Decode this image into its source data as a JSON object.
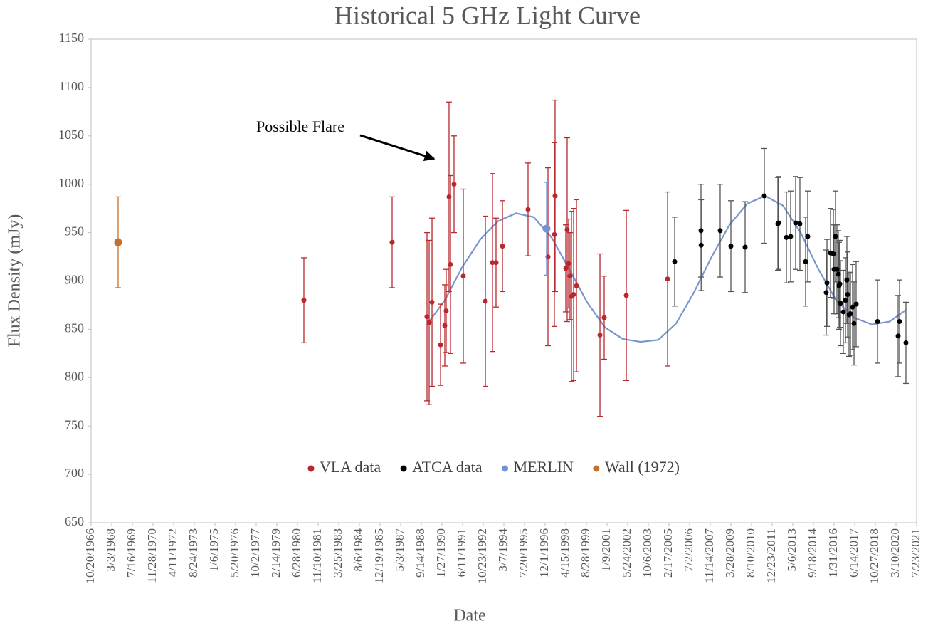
{
  "chart_data": {
    "type": "scatter",
    "title": "Historical 5 GHz Light Curve",
    "xlabel": "Date",
    "ylabel": "Flux Density (mJy)",
    "annotation": "Possible Flare",
    "legend": "center",
    "xlim": [
      24400,
      44400
    ],
    "ylim": [
      650,
      1150
    ],
    "yticks": [
      650,
      700,
      750,
      800,
      850,
      900,
      950,
      1000,
      1050,
      1100,
      1150
    ],
    "xticks": [
      {
        "value": 24400,
        "label": "10/20/1966"
      },
      {
        "value": 24900,
        "label": "3/3/1968"
      },
      {
        "value": 25400,
        "label": "7/16/1969"
      },
      {
        "value": 25900,
        "label": "11/28/1970"
      },
      {
        "value": 26400,
        "label": "4/11/1972"
      },
      {
        "value": 26900,
        "label": "8/24/1973"
      },
      {
        "value": 27400,
        "label": "1/6/1975"
      },
      {
        "value": 27900,
        "label": "5/20/1976"
      },
      {
        "value": 28400,
        "label": "10/2/1977"
      },
      {
        "value": 28900,
        "label": "2/14/1979"
      },
      {
        "value": 29400,
        "label": "6/28/1980"
      },
      {
        "value": 29900,
        "label": "11/10/1981"
      },
      {
        "value": 30400,
        "label": "3/25/1983"
      },
      {
        "value": 30900,
        "label": "8/6/1984"
      },
      {
        "value": 31400,
        "label": "12/19/1985"
      },
      {
        "value": 31900,
        "label": "5/3/1987"
      },
      {
        "value": 32400,
        "label": "9/14/1988"
      },
      {
        "value": 32900,
        "label": "1/27/1990"
      },
      {
        "value": 33400,
        "label": "6/11/1991"
      },
      {
        "value": 33900,
        "label": "10/23/1992"
      },
      {
        "value": 34400,
        "label": "3/7/1994"
      },
      {
        "value": 34900,
        "label": "7/20/1995"
      },
      {
        "value": 35400,
        "label": "12/1/1996"
      },
      {
        "value": 35900,
        "label": "4/15/1998"
      },
      {
        "value": 36400,
        "label": "8/28/1999"
      },
      {
        "value": 36900,
        "label": "1/9/2001"
      },
      {
        "value": 37400,
        "label": "5/24/2002"
      },
      {
        "value": 37900,
        "label": "10/6/2003"
      },
      {
        "value": 38400,
        "label": "2/17/2005"
      },
      {
        "value": 38900,
        "label": "7/2/2006"
      },
      {
        "value": 39400,
        "label": "11/14/2007"
      },
      {
        "value": 39900,
        "label": "3/28/2009"
      },
      {
        "value": 40400,
        "label": "8/10/2010"
      },
      {
        "value": 40900,
        "label": "12/23/2011"
      },
      {
        "value": 41400,
        "label": "5/6/2013"
      },
      {
        "value": 41900,
        "label": "9/18/2014"
      },
      {
        "value": 42400,
        "label": "1/31/2016"
      },
      {
        "value": 42900,
        "label": "6/14/2017"
      },
      {
        "value": 43400,
        "label": "10/27/2018"
      },
      {
        "value": 43900,
        "label": "3/10/2020"
      },
      {
        "value": 44400,
        "label": "7/23/2021"
      }
    ],
    "series": [
      {
        "name": "VLA data",
        "color": "#b8282e",
        "error_color": "#b8282e",
        "x": [
          29555,
          31693,
          32538,
          32590,
          32659,
          32866,
          32969,
          33003,
          33072,
          33107,
          33193,
          33417,
          33952,
          34124,
          34210,
          34366,
          34986,
          35469,
          35624,
          35641,
          35900,
          35934,
          35969,
          36003,
          36038,
          36090,
          36159,
          36728,
          36831,
          37366,
          38366
        ],
        "values": [
          880,
          940,
          863,
          857,
          878,
          834,
          854,
          869,
          987,
          917,
          1000,
          905,
          879,
          919,
          919,
          936,
          974,
          925,
          948,
          988,
          913,
          953,
          918,
          905,
          884,
          886,
          895,
          844,
          862,
          885,
          902
        ],
        "errors": [
          44,
          47,
          87,
          85,
          87,
          42,
          42,
          43,
          98,
          92,
          50,
          90,
          88,
          92,
          46,
          47,
          48,
          92,
          95,
          99,
          45,
          95,
          46,
          45,
          88,
          89,
          89,
          84,
          43,
          88,
          90
        ]
      },
      {
        "name": "ATCA data",
        "color": "#000000",
        "error_color": "#555555",
        "x": [
          38538,
          39176,
          39180,
          39641,
          39900,
          40245,
          40710,
          41038,
          41055,
          41245,
          41348,
          41469,
          41572,
          41710,
          41762,
          42210,
          42228,
          42314,
          42383,
          42400,
          42434,
          42469,
          42503,
          42521,
          42538,
          42555,
          42624,
          42676,
          42710,
          42728,
          42762,
          42797,
          42848,
          42883,
          42934,
          43452,
          43952,
          43986,
          44141
        ],
        "values": [
          920,
          952,
          937,
          952,
          936,
          935,
          988,
          959,
          960,
          945,
          946,
          960,
          959,
          920,
          946,
          888,
          898,
          929,
          928,
          912,
          946,
          912,
          907,
          895,
          897,
          877,
          868,
          880,
          901,
          886,
          865,
          866,
          873,
          856,
          876,
          858,
          843,
          858,
          836
        ],
        "errors": [
          46,
          48,
          47,
          48,
          47,
          47,
          49,
          48,
          48,
          47,
          47,
          48,
          48,
          46,
          47,
          44,
          45,
          46,
          46,
          46,
          47,
          46,
          45,
          45,
          45,
          44,
          43,
          44,
          45,
          44,
          43,
          43,
          44,
          43,
          44,
          43,
          42,
          43,
          42
        ]
      },
      {
        "name": "MERLIN",
        "color": "#7592d0",
        "error_color": "#7592d0",
        "x": [
          35434
        ],
        "values": [
          954
        ],
        "errors": [
          48
        ]
      },
      {
        "name": "Wall (1972)",
        "color": "#c5702c",
        "error_color": "#c5702c",
        "x": [
          25055
        ],
        "values": [
          940
        ],
        "errors": [
          47
        ]
      }
    ],
    "fit": {
      "color": "#7b96cc",
      "x": [
        32538,
        32969,
        33400,
        33831,
        34262,
        34693,
        35124,
        35555,
        35986,
        36417,
        36848,
        37279,
        37710,
        38141,
        38572,
        39003,
        39434,
        39866,
        40297,
        40728,
        41159,
        41590,
        42021,
        42452,
        42883,
        43314,
        43745,
        44141
      ],
      "values": [
        855,
        880,
        915,
        943,
        962,
        970,
        966,
        945,
        912,
        878,
        852,
        840,
        837,
        839,
        856,
        888,
        925,
        958,
        980,
        988,
        978,
        950,
        912,
        880,
        862,
        855,
        858,
        870
      ]
    }
  }
}
